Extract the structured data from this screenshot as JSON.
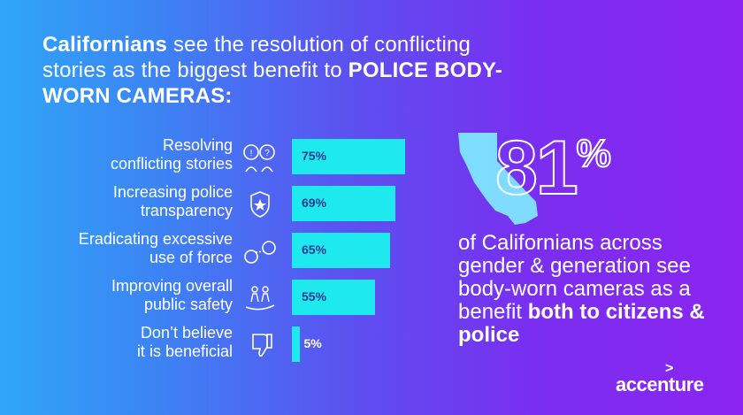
{
  "title": {
    "part1_bold": "Californians",
    "part2": " see the resolution of conflicting stories as the biggest benefit to ",
    "part3_bold": "POLICE BODY-WORN CAMERAS:"
  },
  "chart_data": {
    "type": "bar",
    "orientation": "horizontal",
    "title": "Californians see the resolution of conflicting stories as the biggest benefit to POLICE BODY-WORN CAMERAS:",
    "categories": [
      "Resolving conflicting stories",
      "Increasing police transparency",
      "Eradicating excessive use of force",
      "Improving overall public safety",
      "Don't believe it is beneficial"
    ],
    "values": [
      75,
      69,
      65,
      55,
      5
    ],
    "value_labels": [
      "75%",
      "69%",
      "65%",
      "55%",
      "5%"
    ],
    "unit": "%",
    "xlim": [
      0,
      100
    ],
    "label_lines": [
      [
        "Resolving",
        "conflicting stories"
      ],
      [
        "Increasing police",
        "transparency"
      ],
      [
        "Eradicating excessive",
        "use of force"
      ],
      [
        "Improving overall",
        "public safety"
      ],
      [
        "Don’t believe",
        "it is beneficial"
      ]
    ],
    "icons": [
      "conflicting-speech-icon",
      "police-badge-icon",
      "handcuffs-icon",
      "family-safety-icon",
      "thumbs-down-icon"
    ]
  },
  "stat": {
    "number": "81",
    "percent_sign": "%",
    "text_plain": "of Californians across gender & generation see body-worn cameras as a benefit ",
    "text_bold": "both to citizens & police",
    "map_icon": "california-map-icon"
  },
  "colors": {
    "bar": "#1de9ee",
    "value_text": "#2b3a8f",
    "background_left": "#2fa6f7",
    "background_right": "#8b25ef"
  },
  "brand": {
    "name": "accenture",
    "mark": ">"
  }
}
